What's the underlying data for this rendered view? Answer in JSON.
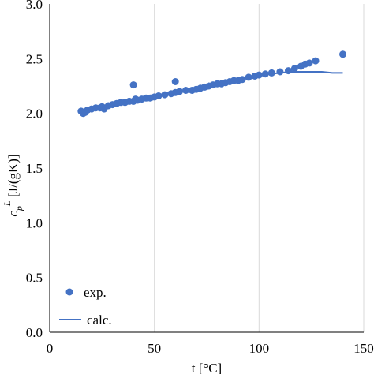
{
  "chart_data": {
    "type": "scatter",
    "xlabel": "t [°C]",
    "ylabel_symbol": "c",
    "ylabel_sub": "p",
    "ylabel_sup": "L",
    "ylabel_unit": " [J/(gK)]",
    "xlim": [
      0,
      150
    ],
    "ylim": [
      0.0,
      3.0
    ],
    "x_ticks": [
      0,
      50,
      100,
      150
    ],
    "y_ticks": [
      0.0,
      0.5,
      1.0,
      1.5,
      2.0,
      2.5,
      3.0
    ],
    "x_tick_labels": [
      "0",
      "50",
      "100",
      "150"
    ],
    "y_tick_labels": [
      "0.0",
      "0.5",
      "1.0",
      "1.5",
      "2.0",
      "2.5",
      "3.0"
    ],
    "grid": "vertical",
    "legend_position": "bottom-left",
    "colors": {
      "series": "#4472C4",
      "grid": "#d9d9d9",
      "axis": "#000000"
    },
    "series": [
      {
        "name": "exp.",
        "kind": "scatter",
        "x": [
          15,
          16,
          17,
          18,
          20,
          22,
          24,
          25,
          26,
          28,
          30,
          32,
          34,
          36,
          38,
          40,
          41,
          42,
          44,
          46,
          48,
          50,
          52,
          55,
          58,
          60,
          62,
          65,
          68,
          70,
          72,
          74,
          76,
          78,
          80,
          82,
          84,
          86,
          88,
          90,
          92,
          95,
          98,
          100,
          103,
          106,
          110,
          114,
          117,
          120,
          122,
          124,
          127,
          140,
          40,
          60
        ],
        "y": [
          2.02,
          2.0,
          2.01,
          2.03,
          2.04,
          2.05,
          2.05,
          2.06,
          2.04,
          2.07,
          2.08,
          2.09,
          2.1,
          2.1,
          2.11,
          2.11,
          2.13,
          2.12,
          2.13,
          2.14,
          2.14,
          2.15,
          2.16,
          2.17,
          2.18,
          2.19,
          2.2,
          2.21,
          2.21,
          2.22,
          2.23,
          2.24,
          2.25,
          2.26,
          2.27,
          2.27,
          2.28,
          2.29,
          2.3,
          2.3,
          2.31,
          2.33,
          2.34,
          2.35,
          2.36,
          2.37,
          2.38,
          2.39,
          2.41,
          2.43,
          2.45,
          2.46,
          2.48,
          2.54,
          2.26,
          2.29
        ]
      },
      {
        "name": "calc.",
        "kind": "line",
        "x": [
          15,
          20,
          30,
          40,
          50,
          60,
          70,
          80,
          90,
          100,
          105,
          110,
          115,
          120,
          125,
          130,
          135,
          140
        ],
        "y": [
          2.02,
          2.04,
          2.08,
          2.12,
          2.16,
          2.2,
          2.23,
          2.27,
          2.31,
          2.34,
          2.36,
          2.37,
          2.38,
          2.38,
          2.38,
          2.38,
          2.37,
          2.37
        ]
      }
    ]
  }
}
